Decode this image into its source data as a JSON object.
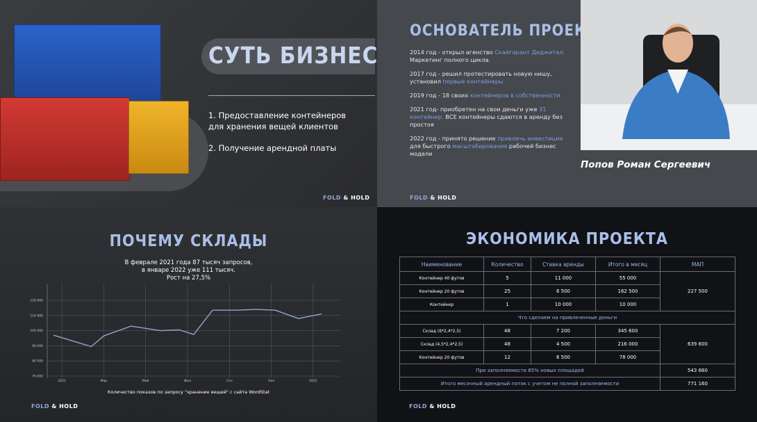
{
  "logo": [
    "FOLD",
    "&",
    "HOLD"
  ],
  "slides": [
    {
      "title": "СУТЬ БИЗНЕСА",
      "items": [
        "1. Предоставление контейнеров для хранения вещей клиентов",
        "2. Получение арендной платы"
      ]
    },
    {
      "title": "ОСНОВАТЕЛЬ ПРОЕКТА:",
      "paragraphs": [
        [
          "2014 год -  открыл агенство ",
          "Скайгарант Диджитал.",
          " Маркетинг полного цикла."
        ],
        [
          "2017 год -  решил протестировать новую нишу, установил ",
          "первые контейнеры"
        ],
        [
          "2019 год - 18 своих ",
          "контейнеров в собственности"
        ],
        [
          "2021 год- приобретен на свои деньги уже ",
          "31 контейнер.",
          " ВСЕ контейнеры сдаются в аренду без простоя"
        ],
        [
          "2022 год - принято решение ",
          "привлечь инвестиции",
          " для быстрого ",
          "масштабирования",
          " рабочей бизнес модели"
        ]
      ],
      "name": "Попов Роман Сергеевич"
    },
    {
      "title": "ПОЧЕМУ СКЛАДЫ",
      "text": [
        "В феврале 2021 года 87 тысяч запросов,",
        "в январе 2022 уже 111 тысяч.",
        "Рост на 27,5%"
      ],
      "chart": {
        "type": "line",
        "color": "#8fa8cc",
        "grid": true,
        "x": [
          -0.4,
          1.4,
          2,
          3.3,
          4.7,
          5.6,
          6.3,
          7.2,
          8.3,
          9.3,
          10.2,
          11.3,
          12.4
        ],
        "values": [
          97000,
          89500,
          96500,
          103000,
          100000,
          100500,
          97500,
          113500,
          113500,
          114000,
          113500,
          108000,
          111000
        ],
        "xlim": [
          -0.7,
          13.3
        ],
        "xticks": [
          {
            "value": 0,
            "label": "2021"
          },
          {
            "value": 2,
            "label": "Мар"
          },
          {
            "value": 4,
            "label": "Май"
          },
          {
            "value": 6,
            "label": "Июл"
          },
          {
            "value": 8,
            "label": "Сен"
          },
          {
            "value": 10,
            "label": "Ноя"
          },
          {
            "value": 12,
            "label": "2022"
          }
        ],
        "ylim": [
          70000,
          120000
        ],
        "yticks": [
          {
            "value": 70000,
            "label": "70 000"
          },
          {
            "value": 80000,
            "label": "80 000"
          },
          {
            "value": 90000,
            "label": "90 000"
          },
          {
            "value": 100000,
            "label": "100 000"
          },
          {
            "value": 110000,
            "label": "110 000"
          },
          {
            "value": 120000,
            "label": "120 000"
          }
        ]
      },
      "caption": "Количество показов по запросу \"хранение вещей\" с сайта WordStat"
    },
    {
      "title": "ЭКОНОМИКА ПРОЕКТА",
      "table": {
        "header": [
          "Наименование",
          "Количество",
          "Ставка аренды",
          "Итого в месяц",
          "МАП"
        ],
        "rows": [
          [
            "Контейнер 40 футов",
            "5",
            "11 000",
            "55 000",
            "227 500"
          ],
          [
            "Контейнер 20 футов",
            "25",
            "6 500",
            "162 500"
          ],
          [
            "Контейнер",
            "1",
            "10 000",
            "10 000"
          ],
          [
            "Что сделаем на привлеченные деньги"
          ],
          [
            "Склад (6*2,4*2,5)",
            "48",
            "7 200",
            "345 600",
            "639 600"
          ],
          [
            "Склад (4,5*2,4*2,5)",
            "48",
            "4 500",
            "216 000"
          ],
          [
            "Контейнер 20 футов",
            "12",
            "6 500",
            "78 000"
          ],
          [
            "При заполняемости 85% новых площадей",
            "543 660"
          ],
          [
            "Итого месячный арендный поток с учетом не полной заполняемости",
            "771 160"
          ]
        ]
      }
    }
  ]
}
